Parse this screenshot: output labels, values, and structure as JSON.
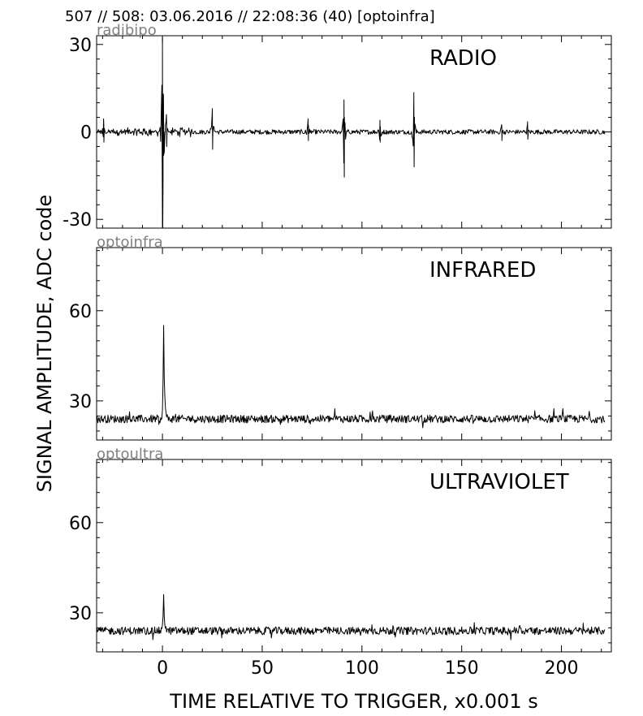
{
  "header": {
    "title": "507 // 508:   03.06.2016 // 22:08:36 (40)  [optoinfra]"
  },
  "figure": {
    "ylabel": "SIGNAL AMPLITUDE,  ADC code",
    "xlabel": "TIME RELATIVE TO TRIGGER,   x0.001 s"
  },
  "chart_data": [
    {
      "type": "line",
      "id": "radio",
      "title": "RADIO",
      "channel_label": "radibipo",
      "xlim": [
        -33,
        225
      ],
      "ylim": [
        -33,
        33
      ],
      "x_ticks": [
        0,
        50,
        100,
        150,
        200
      ],
      "y_ticks": [
        30,
        0,
        -30
      ],
      "y_tick_labels": [
        "30",
        "0",
        "-30"
      ],
      "grid": false,
      "series": [
        {
          "x_range": [
            -33,
            222
          ],
          "baseline": 0,
          "noise_amplitude": 0.8,
          "bursts": [
            {
              "x": -29.5,
              "peak": 4.5,
              "trough": -3.5
            },
            {
              "x": 0,
              "peak": 32.5,
              "trough": -33
            },
            {
              "x": 0.5,
              "peak": 13,
              "trough": -8
            },
            {
              "x": 2,
              "peak": 6,
              "trough": -5
            },
            {
              "x": 25,
              "peak": 8,
              "trough": -6
            },
            {
              "x": 73,
              "peak": 4.5,
              "trough": -3
            },
            {
              "x": 91,
              "peak": 11,
              "trough": -15.5
            },
            {
              "x": 109,
              "peak": 4,
              "trough": -3.5
            },
            {
              "x": 126,
              "peak": 13.5,
              "trough": -12
            },
            {
              "x": 170,
              "peak": 2.5,
              "trough": -3
            },
            {
              "x": 183,
              "peak": 3.5,
              "trough": -2.5
            }
          ]
        }
      ]
    },
    {
      "type": "line",
      "id": "infrared",
      "title": "INFRARED",
      "channel_label": "optoinfra",
      "xlim": [
        -33,
        225
      ],
      "ylim": [
        17,
        81
      ],
      "x_ticks": [
        0,
        50,
        100,
        150,
        200
      ],
      "y_ticks": [
        60,
        30
      ],
      "y_tick_labels": [
        "60",
        "30"
      ],
      "grid": false,
      "series": [
        {
          "x_range": [
            -33,
            222
          ],
          "baseline": 24,
          "noise_amplitude": 1.3,
          "peaks": [
            {
              "x": 0.5,
              "value": 64
            }
          ]
        }
      ]
    },
    {
      "type": "line",
      "id": "ultraviolet",
      "title": "ULTRAVIOLET",
      "channel_label": "optoultra",
      "xlim": [
        -33,
        225
      ],
      "ylim": [
        17,
        81
      ],
      "x_ticks": [
        0,
        50,
        100,
        150,
        200
      ],
      "y_ticks": [
        60,
        30
      ],
      "y_tick_labels": [
        "60",
        "30"
      ],
      "x_tick_labels": [
        "0",
        "50",
        "100",
        "150",
        "200"
      ],
      "grid": false,
      "series": [
        {
          "x_range": [
            -33,
            222
          ],
          "baseline": 24,
          "noise_amplitude": 1.3,
          "peaks": [
            {
              "x": 0.5,
              "value": 40
            }
          ]
        }
      ]
    }
  ]
}
